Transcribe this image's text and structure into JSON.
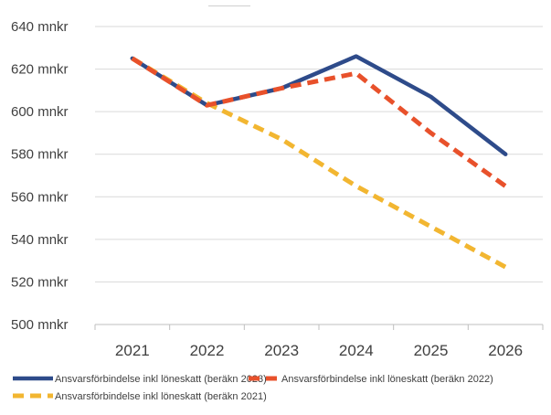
{
  "chart_data": {
    "type": "line",
    "x": [
      "2021",
      "2022",
      "2023",
      "2024",
      "2025",
      "2026"
    ],
    "y_unit_suffix": " mnkr",
    "ylim": [
      500,
      640
    ],
    "yticks": [
      500,
      520,
      540,
      560,
      580,
      600,
      620,
      640
    ],
    "ytick_labels": [
      "500 mnkr",
      "520 mnkr",
      "540 mnkr",
      "560 mnkr",
      "580 mnkr",
      "600 mnkr",
      "620 mnkr",
      "640 mnkr"
    ],
    "grid": "horizontal",
    "legend_position": "bottom",
    "series": [
      {
        "name": "Ansvarsförbindelse inkl löneskatt (beräkn 2023)",
        "values": [
          625,
          603,
          611,
          626,
          607,
          580
        ],
        "color": "#2e4b8a",
        "dashed": false
      },
      {
        "name": "Ansvarsförbindelse inkl löneskatt (beräkn 2022)",
        "values": [
          625,
          603,
          611,
          618,
          590,
          565
        ],
        "color": "#e8512b",
        "dashed": true
      },
      {
        "name": "Ansvarsförbindelse inkl löneskatt (beräkn 2021)",
        "values": [
          625,
          604,
          587,
          565,
          546,
          527
        ],
        "color": "#f2b631",
        "dashed": true
      }
    ]
  }
}
